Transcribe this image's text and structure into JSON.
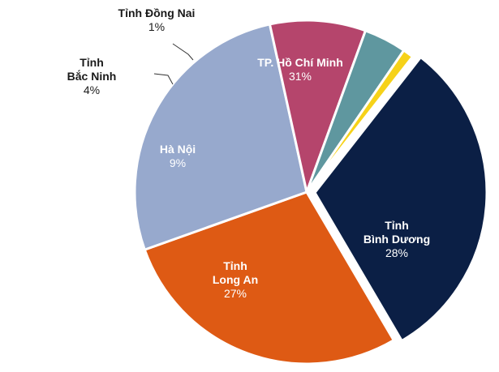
{
  "chart_data": {
    "type": "pie",
    "title": "",
    "slices": [
      {
        "name": "TP. Hồ Chí Minh",
        "name_lines": [
          "TP. Hồ Chí Minh"
        ],
        "value": 31,
        "label": "31%",
        "color": "#0b1f45",
        "text_color": "#ffffff"
      },
      {
        "name": "Tỉnh Bình Dương",
        "name_lines": [
          "Tỉnh",
          "Bình Dương"
        ],
        "value": 28,
        "label": "28%",
        "color": "#de5a14",
        "text_color": "#ffffff"
      },
      {
        "name": "Tỉnh Long An",
        "name_lines": [
          "Tỉnh",
          "Long An"
        ],
        "value": 27,
        "label": "27%",
        "color": "#97a9cd",
        "text_color": "#ffffff"
      },
      {
        "name": "Hà Nội",
        "name_lines": [
          "Hà Nội"
        ],
        "value": 9,
        "label": "9%",
        "color": "#b5456c",
        "text_color": "#ffffff"
      },
      {
        "name": "Tỉnh Bắc Ninh",
        "name_lines": [
          "Tỉnh",
          "Bắc Ninh"
        ],
        "value": 4,
        "label": "4%",
        "color": "#5f979f",
        "text_color": "#1a1a1a"
      },
      {
        "name": "Tỉnh Đồng Nai",
        "name_lines": [
          "Tỉnh Đồng Nai"
        ],
        "value": 1,
        "label": "1%",
        "color": "#f6d219",
        "text_color": "#1a1a1a"
      }
    ]
  }
}
